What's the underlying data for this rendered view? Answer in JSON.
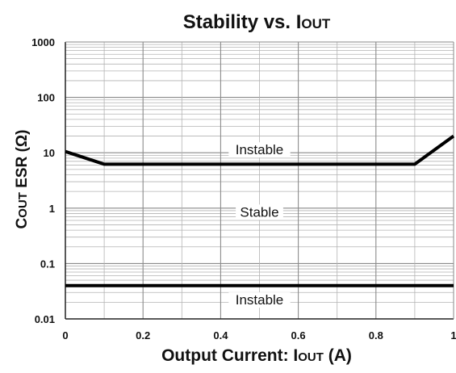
{
  "chart_data": {
    "type": "line",
    "title": {
      "main": "Stability vs. I",
      "subscript": "OUT"
    },
    "xlabel": {
      "main": "Output Current: I",
      "subscript": "OUT",
      "suffix": " (A)"
    },
    "ylabel": {
      "first_letter": "C",
      "small_caps": "OUT",
      "rest": " ESR (Ω)"
    },
    "xlim": [
      0,
      1
    ],
    "ylim": [
      0.01,
      1000
    ],
    "y_scale": "log",
    "grid": true,
    "x_ticks": [
      {
        "value": 0,
        "label": "0"
      },
      {
        "value": 0.2,
        "label": "0.2"
      },
      {
        "value": 0.4,
        "label": "0.4"
      },
      {
        "value": 0.6,
        "label": "0.6"
      },
      {
        "value": 0.8,
        "label": "0.8"
      },
      {
        "value": 1,
        "label": "1"
      }
    ],
    "y_ticks": [
      {
        "value": 0.01,
        "label": "0.01"
      },
      {
        "value": 0.1,
        "label": "0.1"
      },
      {
        "value": 1,
        "label": "1"
      },
      {
        "value": 10,
        "label": "10"
      },
      {
        "value": 100,
        "label": "100"
      },
      {
        "value": 1000,
        "label": "1000"
      }
    ],
    "series": [
      {
        "points": [
          {
            "x": 0,
            "y": 10.5
          },
          {
            "x": 0.1,
            "y": 6.2
          },
          {
            "x": 0.9,
            "y": 6.2
          },
          {
            "x": 1,
            "y": 20
          }
        ]
      },
      {
        "points": [
          {
            "x": 0,
            "y": 0.04
          },
          {
            "x": 1,
            "y": 0.04
          }
        ]
      }
    ],
    "annotations": [
      {
        "text": "Instable",
        "x": 0.5,
        "y": 10
      },
      {
        "text": "Stable",
        "x": 0.5,
        "y": 0.75
      },
      {
        "text": "Instable",
        "x": 0.5,
        "y": 0.0195
      }
    ],
    "line_color": "#000000",
    "grid_color": "#b3b3b3"
  }
}
